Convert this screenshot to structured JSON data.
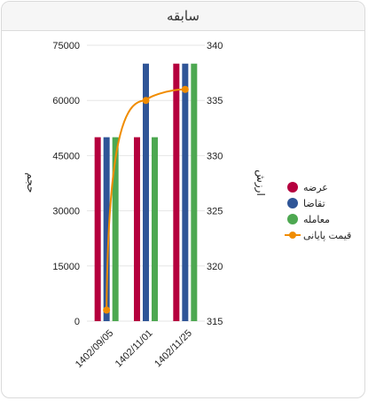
{
  "header": {
    "title": "سابقه"
  },
  "chart_data": {
    "type": "bar",
    "categories": [
      "1402/09/05",
      "1402/11/01",
      "1402/11/25"
    ],
    "series": [
      {
        "name": "عرضه",
        "values": [
          50000,
          50000,
          70000
        ],
        "color": "#b5003e",
        "axis": "left"
      },
      {
        "name": "تقاضا",
        "values": [
          50000,
          70000,
          70000
        ],
        "color": "#2f5597",
        "axis": "left"
      },
      {
        "name": "معامله",
        "values": [
          50000,
          50000,
          70000
        ],
        "color": "#4da851",
        "axis": "left"
      },
      {
        "name": "قیمت پایانی",
        "type": "line",
        "values": [
          316,
          335,
          336
        ],
        "color": "#f08c00",
        "axis": "right"
      }
    ],
    "y_left": {
      "title": "حجم",
      "ticks": [
        0,
        15000,
        30000,
        45000,
        60000,
        75000
      ],
      "range": [
        0,
        75000
      ]
    },
    "y_right": {
      "title": "ارزش",
      "ticks": [
        315,
        320,
        325,
        330,
        335,
        340
      ],
      "range": [
        315,
        340
      ]
    },
    "grid": true,
    "legend": "right"
  }
}
